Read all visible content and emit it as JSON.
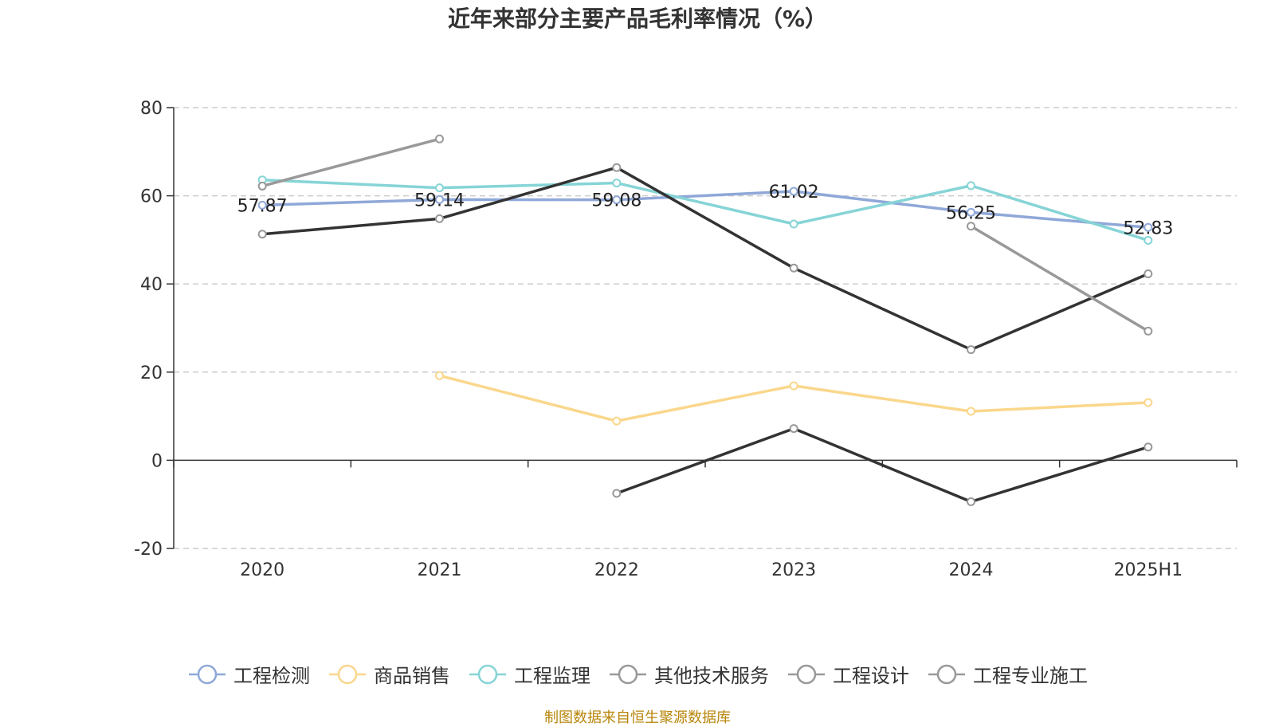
{
  "title": "近年来部分主要产品毛利率情况（%）",
  "source": "制图数据来自恒生聚源数据库",
  "chart_data": {
    "type": "line",
    "categories": [
      "2020",
      "2021",
      "2022",
      "2023",
      "2024",
      "2025H1"
    ],
    "ylim": [
      -20,
      80
    ],
    "yticks": [
      -20,
      0,
      20,
      40,
      60,
      80
    ],
    "grid": true,
    "legend_position": "bottom",
    "series": [
      {
        "name": "工程检测",
        "color": "#8fa8d8",
        "values": [
          57.87,
          59.14,
          59.08,
          61.02,
          56.25,
          52.83
        ],
        "labels": [
          "57.87",
          "59.14",
          "59.08",
          "61.02",
          "56.25",
          "52.83"
        ]
      },
      {
        "name": "商品销售",
        "color": "#fad78c",
        "values": [
          null,
          19.2,
          8.9,
          16.9,
          11.1,
          13.1
        ]
      },
      {
        "name": "工程监理",
        "color": "#86d4d6",
        "values": [
          63.6,
          61.8,
          62.9,
          53.6,
          62.3,
          49.9
        ]
      },
      {
        "name": "其他技术服务",
        "color": "#333333",
        "values": [
          51.3,
          54.8,
          66.4,
          43.6,
          25.1,
          42.3
        ]
      },
      {
        "name": "工程设计",
        "color": "#999999",
        "values": [
          62.2,
          72.9,
          null,
          null,
          53.1,
          29.3
        ]
      },
      {
        "name": "工程专业施工",
        "color": "#333333",
        "values": [
          null,
          null,
          -7.5,
          7.2,
          -9.4,
          3.0
        ]
      }
    ],
    "legend_colors": [
      "#8fa8d8",
      "#fad78c",
      "#86d4d6",
      "#999999",
      "#999999",
      "#999999"
    ]
  }
}
